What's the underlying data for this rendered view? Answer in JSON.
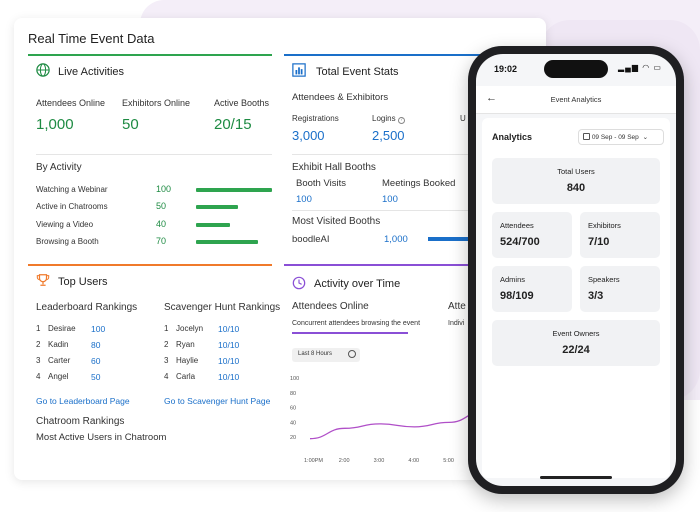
{
  "dashboard": {
    "title": "Real Time Event Data",
    "live": {
      "title": "Live Activities",
      "stats": [
        {
          "label": "Attendees Online",
          "value": "1,000"
        },
        {
          "label": "Exhibitors Online",
          "value": "50"
        },
        {
          "label": "Active Booths",
          "value": "20/15"
        }
      ],
      "by_activity_title": "By Activity",
      "activities": [
        {
          "label": "Watching a Webinar",
          "value": "100",
          "share": 1.0
        },
        {
          "label": "Active in Chatrooms",
          "value": "50",
          "share": 0.55
        },
        {
          "label": "Viewing a Video",
          "value": "40",
          "share": 0.45
        },
        {
          "label": "Browsing a Booth",
          "value": "70",
          "share": 0.82
        }
      ]
    },
    "stats": {
      "title": "Total Event Stats",
      "section1": "Attendees & Exhibitors",
      "metrics": [
        {
          "label": "Registrations",
          "value": "3,000"
        },
        {
          "label": "Logins",
          "value": "2,500"
        },
        {
          "label": "U",
          "value": ""
        }
      ],
      "hall_title": "Exhibit Hall Booths",
      "hall": [
        {
          "label": "Booth Visits",
          "value": "100"
        },
        {
          "label": "Meetings Booked",
          "value": "100"
        }
      ],
      "visited_title": "Most Visited Booths",
      "visited": {
        "label": "boodleAI",
        "value": "1,000"
      }
    },
    "top_users": {
      "title": "Top Users",
      "leader_title": "Leaderboard Rankings",
      "leader": [
        {
          "rank": "1",
          "name": "Desirae",
          "score": "100"
        },
        {
          "rank": "2",
          "name": "Kadin",
          "score": "80"
        },
        {
          "rank": "3",
          "name": "Carter",
          "score": "60"
        },
        {
          "rank": "4",
          "name": "Angel",
          "score": "50"
        }
      ],
      "hunt_title": "Scavenger Hunt Rankings",
      "hunt": [
        {
          "rank": "1",
          "name": "Jocelyn",
          "score": "10/10"
        },
        {
          "rank": "2",
          "name": "Ryan",
          "score": "10/10"
        },
        {
          "rank": "3",
          "name": "Haylie",
          "score": "10/10"
        },
        {
          "rank": "4",
          "name": "Carla",
          "score": "10/10"
        }
      ],
      "leader_link": "Go to Leaderboard Page",
      "hunt_link": "Go to Scavenger Hunt Page",
      "chat_title": "Chatroom Rankings",
      "chat_sub": "Most Active Users in Chatroom"
    },
    "activity": {
      "title": "Activity over Time",
      "tab1": "Attendees Online",
      "tab1_sub": "Concurrent attendees browsing the event",
      "tab2": "Atte",
      "tab2_sub": "Indivi",
      "range_label": "Last 8 Hours"
    }
  },
  "chart_data": {
    "type": "line",
    "x": [
      "1:00PM",
      "2:00",
      "3:00",
      "4:00",
      "5:00",
      "6:00"
    ],
    "y_ticks": [
      20,
      40,
      60,
      80,
      100
    ],
    "ylim": [
      0,
      100
    ],
    "values": [
      18,
      32,
      38,
      34,
      40,
      55
    ]
  },
  "phone": {
    "time": "19:02",
    "status_icons": "▂▄▆ ◠ ▭",
    "header_title": "Event Analytics",
    "analytics_title": "Analytics",
    "date_range": "09 Sep - 09 Sep",
    "cards": {
      "total_users": {
        "label": "Total Users",
        "value": "840"
      },
      "attendees": {
        "label": "Attendees",
        "value": "524/700"
      },
      "exhibitors": {
        "label": "Exhibitors",
        "value": "7/10"
      },
      "admins": {
        "label": "Admins",
        "value": "98/109"
      },
      "speakers": {
        "label": "Speakers",
        "value": "3/3"
      },
      "event_owners": {
        "label": "Event Owners",
        "value": "22/24"
      }
    }
  }
}
